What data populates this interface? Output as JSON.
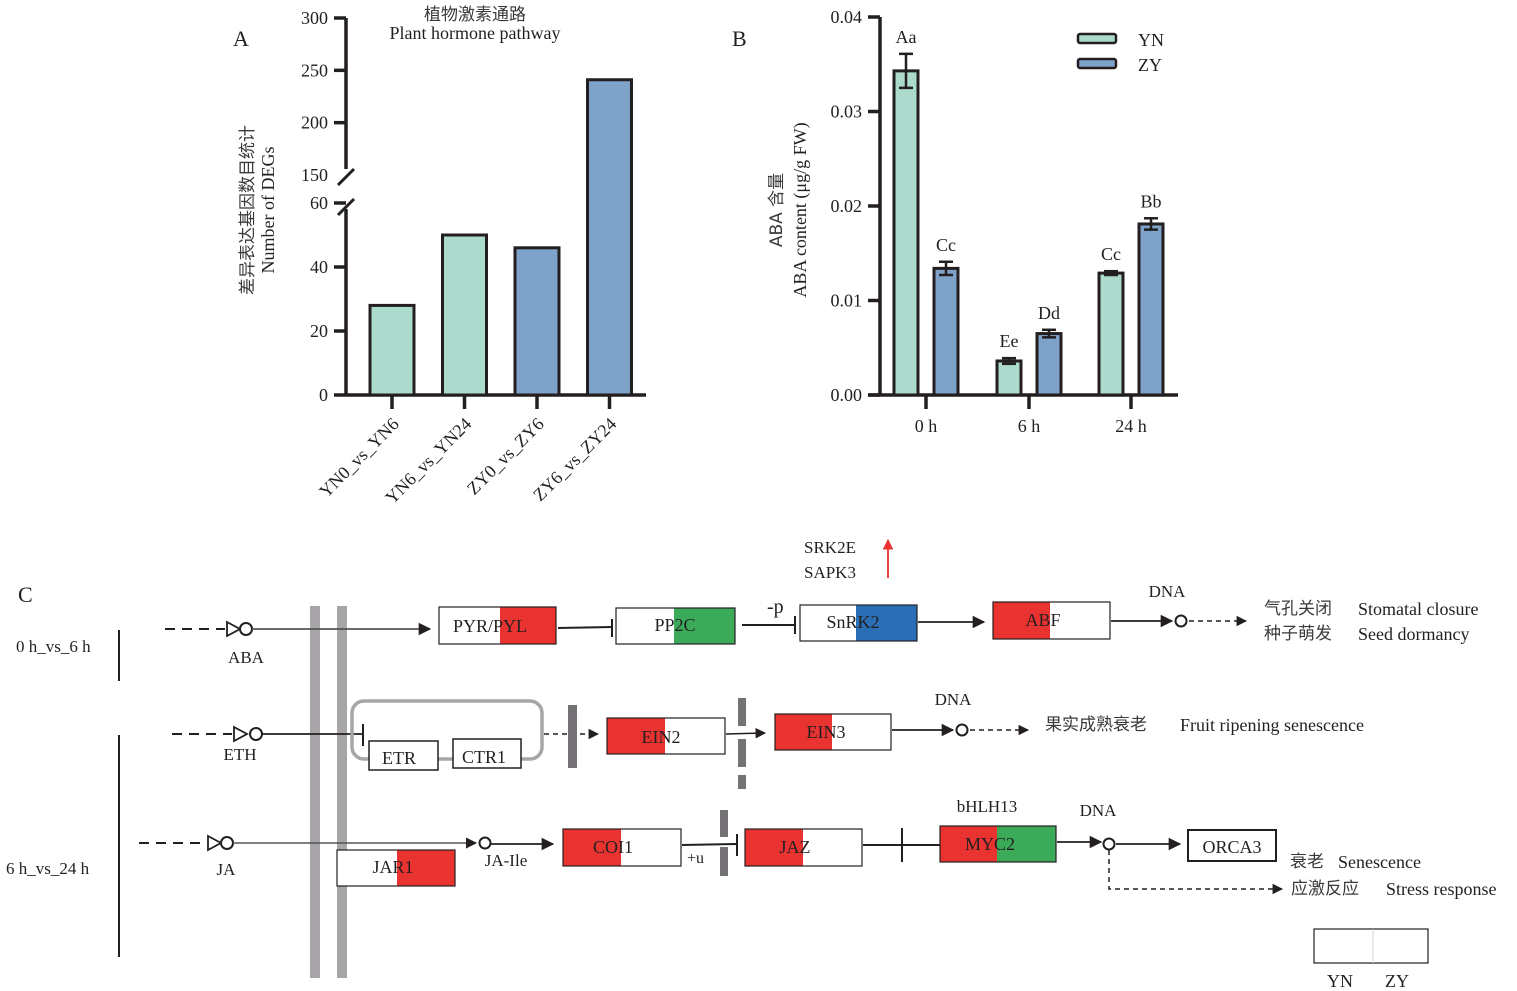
{
  "colors": {
    "yn": "#acdacc",
    "zy": "#7fa2c9",
    "axis": "#231f20",
    "up_red": "#e93331",
    "down_green": "#3bab5a",
    "blue": "#2a6fb6",
    "membrane": "#a7a5a8",
    "arrow_red": "#e93331"
  },
  "chart_data": [
    {
      "panel": "A",
      "type": "bar",
      "title": "植物激素通路",
      "subtitle": "Plant hormone pathway",
      "ylabel_cn": "差异表达基因数目统计",
      "ylabel": "Number of DEGs",
      "categories": [
        "YN0_vs_YN6",
        "YN6_vs_YN24",
        "ZY0_vs_ZY6",
        "ZY6_vs_ZY24"
      ],
      "values": [
        28,
        50,
        46,
        241
      ],
      "bar_groups": [
        "YN",
        "YN",
        "ZY",
        "ZY"
      ],
      "axis_break": [
        60,
        150
      ],
      "ylim_lower": [
        0,
        60
      ],
      "ylim_upper": [
        150,
        300
      ],
      "yticks_lower": [
        0,
        20,
        40,
        60
      ],
      "yticks_upper": [
        150,
        200,
        250,
        300
      ],
      "grid": false
    },
    {
      "panel": "B",
      "type": "bar",
      "ylabel_cn": "ABA 含量",
      "ylabel": "ABA content (μg/g FW)",
      "categories": [
        "0 h",
        "6 h",
        "24 h"
      ],
      "series": [
        {
          "name": "YN",
          "values": [
            0.0343,
            0.0036,
            0.0129
          ],
          "errors": [
            0.0018,
            0.0003,
            0.0002
          ],
          "labels": [
            "Aa",
            "Ee",
            "Cc"
          ]
        },
        {
          "name": "ZY",
          "values": [
            0.0134,
            0.0065,
            0.0181
          ],
          "errors": [
            0.0007,
            0.0004,
            0.0006
          ],
          "labels": [
            "Cc",
            "Dd",
            "Bb"
          ]
        }
      ],
      "ylim": [
        0,
        0.04
      ],
      "yticks": [
        "0.00",
        "0.01",
        "0.02",
        "0.03",
        "0.04"
      ],
      "legend": "top-right",
      "grid": false
    }
  ],
  "panel_labels": {
    "a": "A",
    "b": "B",
    "c": "C"
  },
  "pathway": {
    "comparisons": {
      "top": "0 h_vs_6 h",
      "bottom": "6 h_vs_24 h"
    },
    "aba_row": {
      "ligand": "ABA",
      "genes": [
        {
          "name": "PYR/PYL",
          "left": "white",
          "right": "red"
        },
        {
          "name": "PP2C",
          "left": "white",
          "right": "green"
        },
        {
          "name": "SnRK2",
          "left": "white",
          "right": "blue"
        },
        {
          "name": "ABF",
          "left": "red",
          "right": "white"
        }
      ],
      "modifier": "-p",
      "annotation_genes": [
        "SRK2E",
        "SAPK3"
      ],
      "dna": "DNA",
      "outcomes": [
        {
          "cn": "气孔关闭",
          "en": "Stomatal closure"
        },
        {
          "cn": "种子萌发",
          "en": "Seed dormancy"
        }
      ]
    },
    "eth_row": {
      "ligand": "ETH",
      "receptors": [
        "ETR",
        "CTR1"
      ],
      "genes": [
        {
          "name": "EIN2",
          "left": "red",
          "right": "white"
        },
        {
          "name": "EIN3",
          "left": "red",
          "right": "white"
        }
      ],
      "dna": "DNA",
      "outcome": {
        "cn": "果实成熟衰老",
        "en": "Fruit ripening senescence"
      }
    },
    "ja_row": {
      "ligand": "JA",
      "intermediate": "JA-Ile",
      "genes": [
        {
          "name": "JAR1",
          "left": "white",
          "right": "red"
        },
        {
          "name": "COI1",
          "left": "red",
          "right": "white"
        },
        {
          "name": "JAZ",
          "left": "red",
          "right": "white"
        },
        {
          "name": "MYC2",
          "left": "red",
          "right": "green"
        }
      ],
      "modifier": "+u",
      "myc_label": "bHLH13",
      "dna": "DNA",
      "target": "ORCA3",
      "outcomes": [
        {
          "cn": "衰老",
          "en": "Senescence"
        },
        {
          "cn": "应激反应",
          "en": "Stress response"
        }
      ]
    },
    "legend_box": {
      "left": "YN",
      "right": "ZY"
    }
  }
}
